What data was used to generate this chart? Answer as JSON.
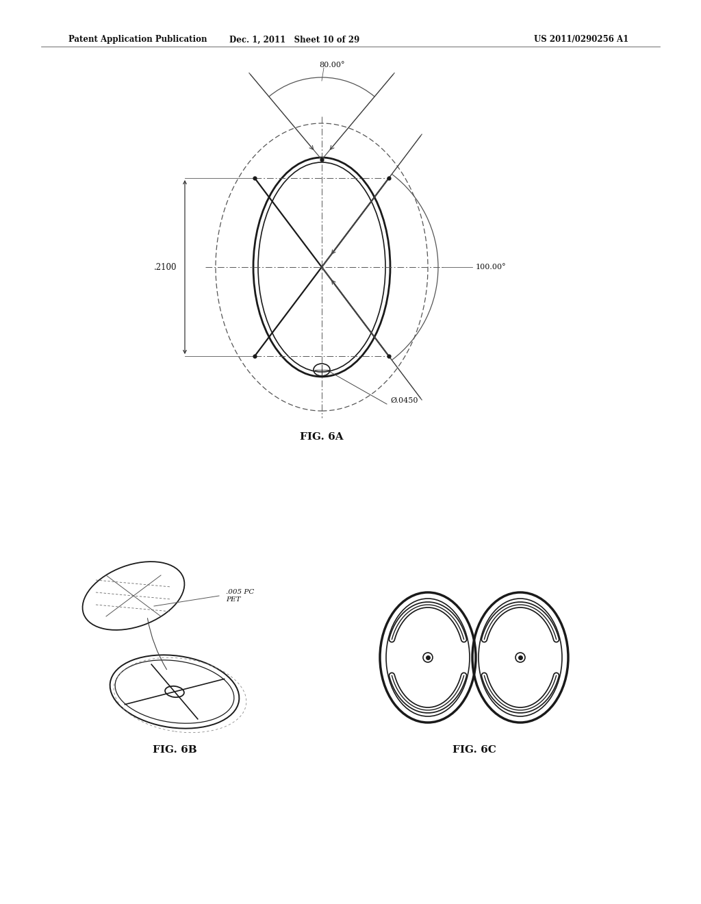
{
  "bg_color": "#ffffff",
  "header_left": "Patent Application Publication",
  "header_mid": "Dec. 1, 2011   Sheet 10 of 29",
  "header_right": "US 2011/0290256 A1",
  "fig6a_label": "FIG. 6A",
  "fig6b_label": "FIG. 6B",
  "fig6c_label": "FIG. 6C",
  "dim_80": "80.00°",
  "dim_100": "100.00°",
  "dim_2100": ".2100",
  "dim_0450": "Ø.0450",
  "label_pc_pet": ".005 PC\nPET"
}
